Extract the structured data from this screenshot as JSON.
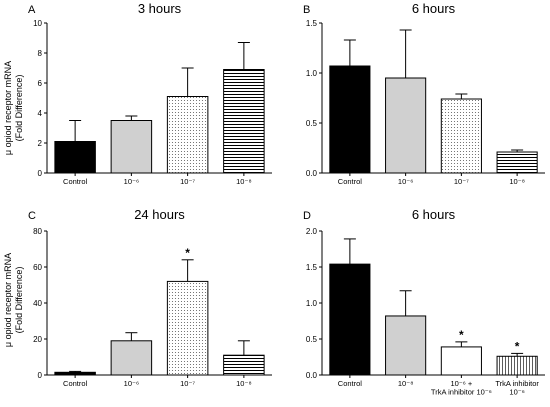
{
  "figure": {
    "ylabel_line1": "μ opiod receptor mRNA",
    "ylabel_line2": "(Fold Difference)"
  },
  "chart_data": [
    {
      "type": "bar",
      "panel": "A",
      "title": "3 hours",
      "categories": [
        "Control",
        "10⁻⁶",
        "10⁻⁷",
        "10⁻⁸"
      ],
      "category_lines": [
        [
          "Control"
        ],
        [
          "10⁻⁶"
        ],
        [
          "10⁻⁷"
        ],
        [
          "10⁻⁸"
        ]
      ],
      "values": [
        2.1,
        3.5,
        5.1,
        6.9
      ],
      "errors": [
        1.4,
        0.3,
        1.9,
        1.8
      ],
      "fills": [
        "black",
        "gray",
        "dots",
        "hlines"
      ],
      "significance": [
        false,
        false,
        false,
        false
      ],
      "ylim": [
        0,
        10
      ],
      "yticks": [
        0,
        2,
        4,
        6,
        8,
        10
      ],
      "ytick_labels": [
        "0",
        "2",
        "4",
        "6",
        "8",
        "10"
      ]
    },
    {
      "type": "bar",
      "panel": "B",
      "title": "6 hours",
      "categories": [
        "Control",
        "10⁻⁶",
        "10⁻⁷",
        "10⁻⁸"
      ],
      "category_lines": [
        [
          "Control"
        ],
        [
          "10⁻⁶"
        ],
        [
          "10⁻⁷"
        ],
        [
          "10⁻⁸"
        ]
      ],
      "values": [
        1.07,
        0.95,
        0.74,
        0.21
      ],
      "errors": [
        0.26,
        0.48,
        0.05,
        0.02
      ],
      "fills": [
        "black",
        "gray",
        "dots",
        "hlines"
      ],
      "significance": [
        false,
        false,
        false,
        false
      ],
      "ylim": [
        0,
        1.5
      ],
      "yticks": [
        0,
        0.5,
        1.0,
        1.5
      ],
      "ytick_labels": [
        "0.0",
        "0.5",
        "1.0",
        "1.5"
      ]
    },
    {
      "type": "bar",
      "panel": "C",
      "title": "24 hours",
      "categories": [
        "Control",
        "10⁻⁶",
        "10⁻⁷",
        "10⁻⁸"
      ],
      "category_lines": [
        [
          "Control"
        ],
        [
          "10⁻⁶"
        ],
        [
          "10⁻⁷"
        ],
        [
          "10⁻⁸"
        ]
      ],
      "values": [
        1.5,
        19,
        52,
        11
      ],
      "errors": [
        0.5,
        4.5,
        12,
        8
      ],
      "fills": [
        "black",
        "gray",
        "dots",
        "hlines"
      ],
      "significance": [
        false,
        false,
        true,
        false
      ],
      "ylim": [
        0,
        80
      ],
      "yticks": [
        0,
        20,
        40,
        60,
        80
      ],
      "ytick_labels": [
        "0",
        "20",
        "40",
        "60",
        "80"
      ]
    },
    {
      "type": "bar",
      "panel": "D",
      "title": "6 hours",
      "categories": [
        "Control",
        "10⁻⁸",
        "10⁻⁶ + TrkA inhibitor 10⁻⁶",
        "TrkA inhibitor 10⁻⁶"
      ],
      "category_lines": [
        [
          "Control"
        ],
        [
          "10⁻⁸"
        ],
        [
          "10⁻⁶ +",
          "TrkA inhibitor 10⁻⁶"
        ],
        [
          "TrkA inhibitor",
          "10⁻⁶"
        ]
      ],
      "values": [
        1.54,
        0.82,
        0.39,
        0.26
      ],
      "errors": [
        0.35,
        0.35,
        0.07,
        0.04
      ],
      "fills": [
        "black",
        "gray",
        "white",
        "vlines"
      ],
      "significance": [
        false,
        false,
        true,
        true
      ],
      "ylim": [
        0,
        2.0
      ],
      "yticks": [
        0,
        0.5,
        1.0,
        1.5,
        2.0
      ],
      "ytick_labels": [
        "0.0",
        "0.5",
        "1.0",
        "1.5",
        "2.0"
      ]
    }
  ]
}
